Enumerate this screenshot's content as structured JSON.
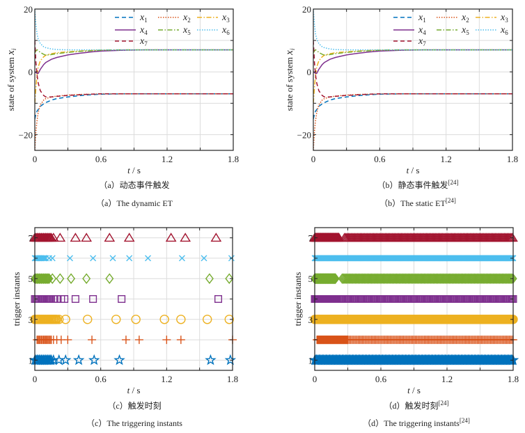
{
  "colors": {
    "x1": "#0072BD",
    "x2": "#D95319",
    "x3": "#EDB120",
    "x4": "#7E2F8E",
    "x5": "#77AC30",
    "x6": "#4DBEEE",
    "x7": "#A2142F",
    "grid": "#dcdcdc",
    "axis": "#222222"
  },
  "chart_data": [
    {
      "id": "a",
      "type": "line",
      "caption_cn": "（a）动态事件触发",
      "caption_en": "（a）The dynamic ET",
      "caption_ref": "",
      "xlabel": "t / s",
      "ylabel": "state of system x",
      "ylabel_sub": "i",
      "xlim": [
        0,
        1.8
      ],
      "ylim": [
        -25,
        20
      ],
      "xticks": [
        0,
        0.6,
        1.2,
        1.8
      ],
      "xtick_labels": [
        "0",
        "0.6",
        "1.2",
        "1.8"
      ],
      "yticks": [
        -20,
        0,
        20
      ],
      "ytick_labels": [
        "−20",
        "0",
        "20"
      ],
      "grid": true,
      "legend_position": "top-right",
      "x": [
        0,
        0.01,
        0.02,
        0.03,
        0.05,
        0.08,
        0.1,
        0.15,
        0.2,
        0.3,
        0.4,
        0.5,
        0.6,
        0.8,
        1.0,
        1.8
      ],
      "series": [
        {
          "name": "x1",
          "style": "dashed",
          "values": [
            -15,
            -13.5,
            -12.5,
            -12,
            -11,
            -10.2,
            -9.8,
            -9,
            -8.5,
            -8,
            -7.6,
            -7.3,
            -7.1,
            -7,
            -7,
            -7
          ]
        },
        {
          "name": "x2",
          "style": "dotted",
          "values": [
            -25,
            -19,
            -15.5,
            -13,
            -10.5,
            -9,
            -8.5,
            -8,
            -7.7,
            -7.4,
            -7.2,
            -7.1,
            -7,
            -7,
            -7,
            -7
          ]
        },
        {
          "name": "x3",
          "style": "dashdot",
          "values": [
            -10,
            -5,
            -1,
            1.5,
            3.5,
            4.8,
            5.3,
            5.8,
            6.1,
            6.4,
            6.6,
            6.8,
            6.9,
            7,
            7,
            7
          ]
        },
        {
          "name": "x4",
          "style": "solid",
          "values": [
            0,
            -0.2,
            -0.5,
            -0.5,
            0.8,
            2.3,
            3,
            4,
            4.6,
            5.4,
            5.9,
            6.3,
            6.6,
            6.9,
            7,
            7
          ]
        },
        {
          "name": "x5",
          "style": "dashdot",
          "values": [
            6,
            6.7,
            7,
            6.8,
            6.2,
            5.6,
            5.3,
            5.5,
            5.8,
            6.2,
            6.5,
            6.7,
            6.9,
            7,
            7,
            7
          ]
        },
        {
          "name": "x6",
          "style": "dotted",
          "values": [
            20,
            15,
            12,
            10.5,
            9,
            8,
            7.7,
            7.3,
            7.1,
            7,
            7,
            7,
            7,
            7,
            7,
            7
          ]
        },
        {
          "name": "x7",
          "style": "dashed",
          "values": [
            10,
            3,
            -1,
            -3.5,
            -6,
            -7.5,
            -8,
            -8,
            -7.8,
            -7.5,
            -7.3,
            -7.1,
            -7,
            -7,
            -7,
            -7
          ]
        }
      ]
    },
    {
      "id": "b",
      "type": "line",
      "caption_cn": "（b）静态事件触发",
      "caption_en": "（b）The static ET",
      "caption_ref": "[24]",
      "xlabel": "t / s",
      "ylabel": "state of system x",
      "ylabel_sub": "i",
      "xlim": [
        0,
        1.8
      ],
      "ylim": [
        -25,
        20
      ],
      "xticks": [
        0,
        0.6,
        1.2,
        1.8
      ],
      "xtick_labels": [
        "0",
        "0.6",
        "1.2",
        "1.8"
      ],
      "yticks": [
        -20,
        0,
        20
      ],
      "ytick_labels": [
        "−20",
        "0",
        "20"
      ],
      "grid": true,
      "legend_position": "top-right",
      "x": [
        0,
        0.01,
        0.02,
        0.03,
        0.05,
        0.08,
        0.1,
        0.15,
        0.2,
        0.3,
        0.4,
        0.5,
        0.6,
        0.8,
        1.0,
        1.8
      ],
      "series": [
        {
          "name": "x1",
          "style": "dashed",
          "values": [
            -15,
            -13.5,
            -12.5,
            -12,
            -11,
            -10.2,
            -9.8,
            -9,
            -8.5,
            -8,
            -7.6,
            -7.3,
            -7.1,
            -7,
            -7,
            -7
          ]
        },
        {
          "name": "x2",
          "style": "dotted",
          "values": [
            -25,
            -19,
            -15.5,
            -13,
            -10.5,
            -9,
            -8.5,
            -8,
            -7.7,
            -7.4,
            -7.2,
            -7.1,
            -7,
            -7,
            -7,
            -7
          ]
        },
        {
          "name": "x3",
          "style": "dashdot",
          "values": [
            -10,
            -5,
            -1,
            1.5,
            3.5,
            4.8,
            5.3,
            5.8,
            6.1,
            6.4,
            6.6,
            6.8,
            6.9,
            7,
            7,
            7
          ]
        },
        {
          "name": "x4",
          "style": "solid",
          "values": [
            0,
            -0.2,
            -0.5,
            -0.5,
            0.8,
            2.3,
            3,
            4,
            4.6,
            5.4,
            5.9,
            6.3,
            6.6,
            6.9,
            7,
            7
          ]
        },
        {
          "name": "x5",
          "style": "dashdot",
          "values": [
            6,
            6.7,
            7,
            6.8,
            6.2,
            5.6,
            5.3,
            5.5,
            5.8,
            6.2,
            6.5,
            6.7,
            6.9,
            7,
            7,
            7
          ]
        },
        {
          "name": "x6",
          "style": "dotted",
          "values": [
            20,
            15,
            12,
            10.5,
            9,
            8,
            7.7,
            7.3,
            7.1,
            7,
            7,
            7,
            7,
            7,
            7,
            7
          ]
        },
        {
          "name": "x7",
          "style": "dashed",
          "values": [
            10,
            3,
            -1,
            -3.5,
            -6,
            -7.5,
            -8,
            -8,
            -7.8,
            -7.5,
            -7.3,
            -7.1,
            -7,
            -7,
            -7,
            -7
          ]
        }
      ]
    },
    {
      "id": "c",
      "type": "scatter",
      "caption_cn": "（c）触发时刻",
      "caption_en": "（c）The triggering instants",
      "caption_ref": "",
      "xlabel": "t / s",
      "ylabel": "trigger instants",
      "ylabel_sub": "",
      "xlim": [
        0,
        1.8
      ],
      "ylim": [
        0.5,
        7.5
      ],
      "xticks": [
        0,
        0.6,
        1.2,
        1.8
      ],
      "xtick_labels": [
        "0",
        "0.6",
        "1.2",
        "1.8"
      ],
      "yticks": [
        1,
        3,
        5,
        7
      ],
      "ytick_labels": [
        "1",
        "3",
        "5",
        "7"
      ],
      "grid": true,
      "series": [
        {
          "agent": 1,
          "marker": "star",
          "color_key": "x1",
          "instants": [
            0,
            0.01,
            0.02,
            0.03,
            0.04,
            0.05,
            0.06,
            0.07,
            0.08,
            0.09,
            0.1,
            0.11,
            0.12,
            0.13,
            0.14,
            0.15,
            0.17,
            0.22,
            0.28,
            0.4,
            0.54,
            0.77,
            1.6,
            1.78
          ]
        },
        {
          "agent": 2,
          "marker": "plus",
          "color_key": "x2",
          "instants": [
            0.02,
            0.03,
            0.04,
            0.05,
            0.06,
            0.07,
            0.08,
            0.09,
            0.1,
            0.11,
            0.12,
            0.13,
            0.14,
            0.15,
            0.17,
            0.2,
            0.24,
            0.3,
            0.52,
            0.83,
            0.95,
            1.2,
            1.33,
            1.8
          ]
        },
        {
          "agent": 3,
          "marker": "circle",
          "color_key": "x3",
          "instants": [
            0,
            0.01,
            0.02,
            0.03,
            0.04,
            0.05,
            0.06,
            0.07,
            0.08,
            0.09,
            0.1,
            0.11,
            0.12,
            0.13,
            0.14,
            0.15,
            0.16,
            0.17,
            0.18,
            0.19,
            0.2,
            0.22,
            0.28,
            0.48,
            0.74,
            0.92,
            1.18,
            1.33,
            1.57,
            1.77
          ]
        },
        {
          "agent": 4,
          "marker": "square",
          "color_key": "x4",
          "instants": [
            0,
            0.01,
            0.02,
            0.03,
            0.04,
            0.05,
            0.06,
            0.07,
            0.08,
            0.09,
            0.1,
            0.11,
            0.12,
            0.13,
            0.14,
            0.15,
            0.17,
            0.2,
            0.24,
            0.27,
            0.37,
            0.53,
            0.79,
            1.67
          ]
        },
        {
          "agent": 5,
          "marker": "diamond",
          "color_key": "x5",
          "instants": [
            0,
            0.01,
            0.02,
            0.03,
            0.04,
            0.05,
            0.06,
            0.07,
            0.08,
            0.09,
            0.1,
            0.11,
            0.12,
            0.13,
            0.16,
            0.23,
            0.33,
            0.47,
            0.68,
            1.59,
            1.77
          ]
        },
        {
          "agent": 6,
          "marker": "cross",
          "color_key": "x6",
          "instants": [
            0,
            0.01,
            0.02,
            0.03,
            0.04,
            0.05,
            0.06,
            0.07,
            0.08,
            0.09,
            0.1,
            0.13,
            0.16,
            0.32,
            0.53,
            0.71,
            0.86,
            1.03,
            1.34,
            1.54,
            1.79
          ]
        },
        {
          "agent": 7,
          "marker": "triangle",
          "color_key": "x7",
          "instants": [
            0,
            0.01,
            0.02,
            0.03,
            0.04,
            0.05,
            0.06,
            0.07,
            0.08,
            0.09,
            0.1,
            0.11,
            0.12,
            0.13,
            0.14,
            0.15,
            0.17,
            0.23,
            0.37,
            0.47,
            0.68,
            0.86,
            1.24,
            1.37,
            1.65
          ]
        }
      ]
    },
    {
      "id": "d",
      "type": "scatter",
      "caption_cn": "（d）触发时刻",
      "caption_en": "（d）The triggering instants",
      "caption_ref": "[24]",
      "xlabel": "t / s",
      "ylabel": "trigger instants",
      "ylabel_sub": "",
      "xlim": [
        0,
        1.8
      ],
      "ylim": [
        0.5,
        7.5
      ],
      "xticks": [
        0,
        0.6,
        1.2,
        1.8
      ],
      "xtick_labels": [
        "0",
        "0.6",
        "1.2",
        "1.8"
      ],
      "yticks": [
        1,
        3,
        5,
        7
      ],
      "ytick_labels": [
        "1",
        "3",
        "5",
        "7"
      ],
      "grid": true,
      "series": [
        {
          "agent": 1,
          "marker": "star",
          "color_key": "x1",
          "regular_segments": [
            {
              "from": 0,
              "to": 1.8,
              "step": 0.008
            }
          ]
        },
        {
          "agent": 2,
          "marker": "plus",
          "color_key": "x2",
          "regular_segments": [
            {
              "from": 0.02,
              "to": 0.3,
              "step": 0.004
            },
            {
              "from": 0.3,
              "to": 1.8,
              "step": 0.012
            }
          ]
        },
        {
          "agent": 3,
          "marker": "circle",
          "color_key": "x3",
          "regular_segments": [
            {
              "from": 0,
              "to": 1.8,
              "step": 0.008
            }
          ]
        },
        {
          "agent": 4,
          "marker": "square",
          "color_key": "x4",
          "regular_segments": [
            {
              "from": 0,
              "to": 0.2,
              "step": 0.004
            },
            {
              "from": 0.2,
              "to": 1.8,
              "step": 0.01
            }
          ]
        },
        {
          "agent": 5,
          "marker": "diamond",
          "color_key": "x5",
          "regular_segments": [
            {
              "from": 0,
              "to": 0.19,
              "step": 0.004
            },
            {
              "from": 0.25,
              "to": 1.8,
              "step": 0.012
            }
          ]
        },
        {
          "agent": 6,
          "marker": "cross",
          "color_key": "x6",
          "regular_segments": [
            {
              "from": 0,
              "to": 1.8,
              "step": 0.006
            }
          ]
        },
        {
          "agent": 7,
          "marker": "triangle",
          "color_key": "x7",
          "regular_segments": [
            {
              "from": 0,
              "to": 0.22,
              "step": 0.004
            },
            {
              "from": 0.27,
              "to": 1.8,
              "step": 0.012
            }
          ]
        }
      ]
    }
  ]
}
